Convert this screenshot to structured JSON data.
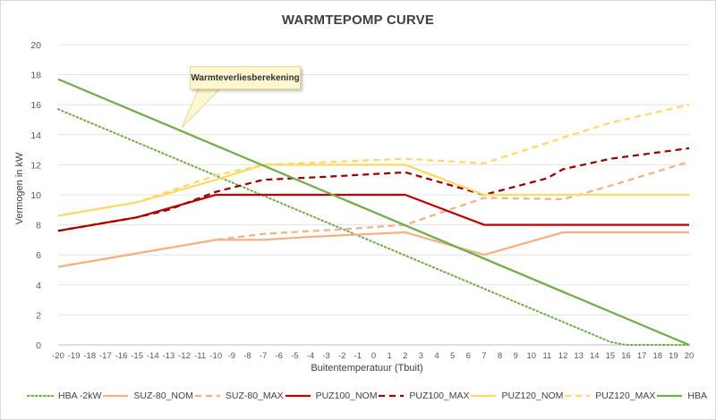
{
  "chart_data": {
    "type": "line",
    "title": "WARMTEPOMP CURVE",
    "xlabel": "Buitentemperatuur (Tbuit)",
    "ylabel": "Vermogen in kW",
    "x": [
      -20,
      -19,
      -18,
      -17,
      -16,
      -15,
      -14,
      -13,
      -12,
      -11,
      -10,
      -9,
      -8,
      -7,
      -6,
      -5,
      -4,
      -3,
      -2,
      -1,
      0,
      1,
      2,
      3,
      4,
      5,
      6,
      7,
      8,
      9,
      10,
      11,
      12,
      13,
      14,
      15,
      16,
      17,
      18,
      19,
      20
    ],
    "xlim": [
      -20,
      20
    ],
    "ylim": [
      0,
      20
    ],
    "yticks": [
      0,
      2,
      4,
      6,
      8,
      10,
      12,
      14,
      16,
      18,
      20
    ],
    "grid": true,
    "legend_position": "bottom",
    "annotation": "Warmteverliesberekening",
    "series": [
      {
        "name": "HBA -2kW",
        "color": "#70ad47",
        "style": "dotted",
        "points": [
          [
            -20,
            15.7
          ],
          [
            15,
            0.2
          ],
          [
            16,
            0
          ],
          [
            20,
            0
          ]
        ]
      },
      {
        "name": "SUZ-80_NOM",
        "color": "#f4b183",
        "style": "solid",
        "points": [
          [
            -20,
            5.2
          ],
          [
            -15,
            6.1
          ],
          [
            -10,
            7
          ],
          [
            -7,
            7
          ],
          [
            -4,
            7.2
          ],
          [
            2,
            7.5
          ],
          [
            7,
            6
          ],
          [
            12,
            7.5
          ],
          [
            20,
            7.5
          ]
        ]
      },
      {
        "name": "SUZ-80_MAX",
        "color": "#f4b183",
        "style": "dashed",
        "points": [
          [
            -20,
            5.2
          ],
          [
            -15,
            6.1
          ],
          [
            -10,
            7
          ],
          [
            -7,
            7.4
          ],
          [
            -2,
            7.7
          ],
          [
            2,
            8
          ],
          [
            7,
            9.8
          ],
          [
            12,
            9.7
          ],
          [
            15,
            10.6
          ],
          [
            20,
            12.2
          ]
        ]
      },
      {
        "name": "PUZ100_NOM",
        "color": "#c00000",
        "style": "solid",
        "points": [
          [
            -20,
            7.6
          ],
          [
            -15,
            8.5
          ],
          [
            -10,
            10
          ],
          [
            2,
            10
          ],
          [
            7,
            8
          ],
          [
            20,
            8
          ]
        ]
      },
      {
        "name": "PUZ100_MAX",
        "color": "#9e0000",
        "style": "dashed",
        "points": [
          [
            -20,
            7.6
          ],
          [
            -15,
            8.5
          ],
          [
            -13,
            9
          ],
          [
            -10,
            10.2
          ],
          [
            -7,
            11
          ],
          [
            -3,
            11.2
          ],
          [
            2,
            11.5
          ],
          [
            7,
            10
          ],
          [
            11,
            11.1
          ],
          [
            12,
            11.7
          ],
          [
            15,
            12.4
          ],
          [
            20,
            13.1
          ]
        ]
      },
      {
        "name": "PUZ120_NOM",
        "color": "#ffd966",
        "style": "solid",
        "points": [
          [
            -20,
            8.6
          ],
          [
            -15,
            9.5
          ],
          [
            -10,
            11
          ],
          [
            -7,
            12
          ],
          [
            2,
            12
          ],
          [
            7,
            10
          ],
          [
            20,
            10
          ]
        ]
      },
      {
        "name": "PUZ120_MAX",
        "color": "#ffd966",
        "style": "dashed",
        "points": [
          [
            -20,
            8.6
          ],
          [
            -15,
            9.5
          ],
          [
            -10,
            11.3
          ],
          [
            -7,
            12
          ],
          [
            2,
            12.4
          ],
          [
            7,
            12.1
          ],
          [
            12,
            13.8
          ],
          [
            15,
            14.8
          ],
          [
            20,
            16
          ]
        ]
      },
      {
        "name": "HBA",
        "color": "#70ad47",
        "style": "solid",
        "points": [
          [
            -20,
            17.7
          ],
          [
            20,
            0
          ]
        ]
      }
    ]
  }
}
